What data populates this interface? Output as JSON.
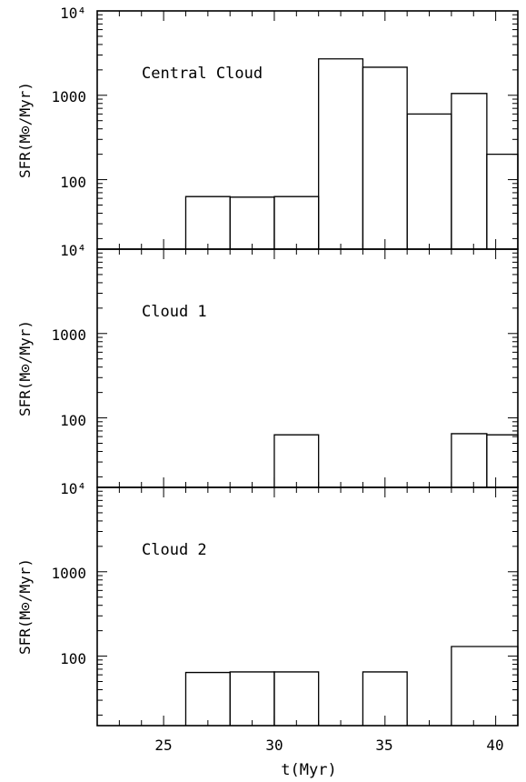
{
  "chart_data": [
    {
      "type": "line",
      "step": true,
      "title": "",
      "panel_label": "Central Cloud",
      "ylabel": "SFR(M⊙/Myr)",
      "xlabel": "",
      "yscale": "log",
      "ylim": [
        15,
        10000
      ],
      "xlim": [
        22,
        41
      ],
      "ytick_labels": [
        "100",
        "1000",
        "10⁴"
      ],
      "ytick_values": [
        100,
        1000,
        10000
      ],
      "steps": [
        {
          "x0": 26,
          "x1": 28,
          "y": 63
        },
        {
          "x0": 28,
          "x1": 30,
          "y": 62
        },
        {
          "x0": 30,
          "x1": 32,
          "y": 63
        },
        {
          "x0": 32,
          "x1": 34,
          "y": 2700
        },
        {
          "x0": 34,
          "x1": 36,
          "y": 2150
        },
        {
          "x0": 36,
          "x1": 38,
          "y": 600
        },
        {
          "x0": 38,
          "x1": 39.6,
          "y": 1050
        },
        {
          "x0": 39.6,
          "x1": 41,
          "y": 200
        }
      ]
    },
    {
      "type": "line",
      "step": true,
      "title": "",
      "panel_label": "Cloud 1",
      "ylabel": "SFR(M⊙/Myr)",
      "xlabel": "",
      "yscale": "log",
      "ylim": [
        15,
        10000
      ],
      "xlim": [
        22,
        41
      ],
      "ytick_labels": [
        "100",
        "1000",
        "10⁴"
      ],
      "ytick_values": [
        100,
        1000,
        10000
      ],
      "steps": [
        {
          "x0": 30,
          "x1": 32,
          "y": 63
        },
        {
          "x0": 38,
          "x1": 39.6,
          "y": 65
        },
        {
          "x0": 39.6,
          "x1": 41,
          "y": 63
        }
      ]
    },
    {
      "type": "line",
      "step": true,
      "title": "",
      "panel_label": "Cloud 2",
      "ylabel": "SFR(M⊙/Myr)",
      "xlabel": "t(Myr)",
      "yscale": "log",
      "ylim": [
        15,
        10000
      ],
      "xlim": [
        22,
        41
      ],
      "ytick_labels": [
        "100",
        "1000",
        "10⁴"
      ],
      "ytick_values": [
        100,
        1000,
        10000
      ],
      "xtick_labels": [
        "25",
        "30",
        "35",
        "40"
      ],
      "xtick_values": [
        25,
        30,
        35,
        40
      ],
      "steps": [
        {
          "x0": 26,
          "x1": 28,
          "y": 64
        },
        {
          "x0": 28,
          "x1": 30,
          "y": 65
        },
        {
          "x0": 30,
          "x1": 32,
          "y": 65
        },
        {
          "x0": 34,
          "x1": 36,
          "y": 65
        },
        {
          "x0": 38,
          "x1": 41,
          "y": 130
        }
      ]
    }
  ]
}
